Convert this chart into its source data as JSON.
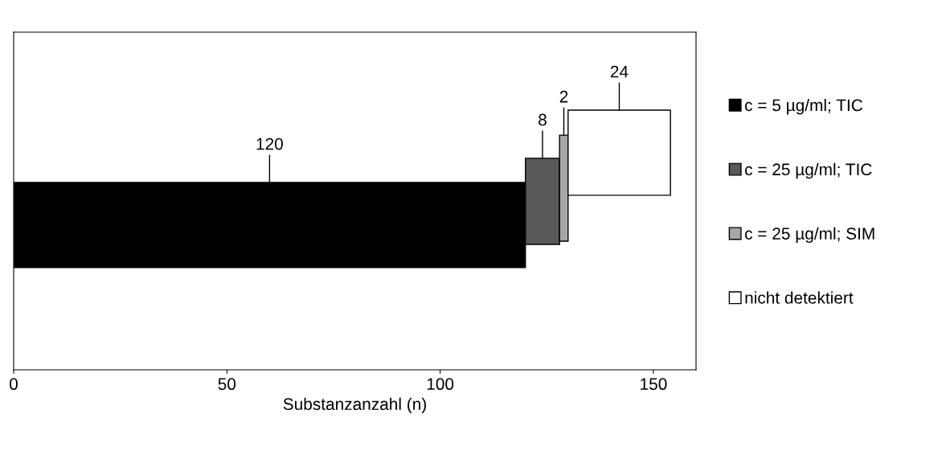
{
  "chart_data": {
    "type": "bar",
    "orientation": "horizontal",
    "stacked": true,
    "categories": [
      null
    ],
    "series": [
      {
        "name": "c = 5 µg/ml; TIC",
        "color": "#000000",
        "values": [
          120
        ]
      },
      {
        "name": "c = 25 µg/ml; TIC",
        "color": "#595959",
        "values": [
          8
        ]
      },
      {
        "name": "c = 25 µg/ml; SIM",
        "color": "#a6a6a6",
        "values": [
          2
        ]
      },
      {
        "name": "nicht detektiert",
        "color": "#ffffff",
        "values": [
          24
        ]
      }
    ],
    "xlabel": "Substanzanzahl (n)",
    "xlim": [
      0,
      160
    ],
    "xticks": [
      0,
      50,
      100,
      150
    ],
    "data_labels": true,
    "grid": false,
    "legend": "right"
  }
}
